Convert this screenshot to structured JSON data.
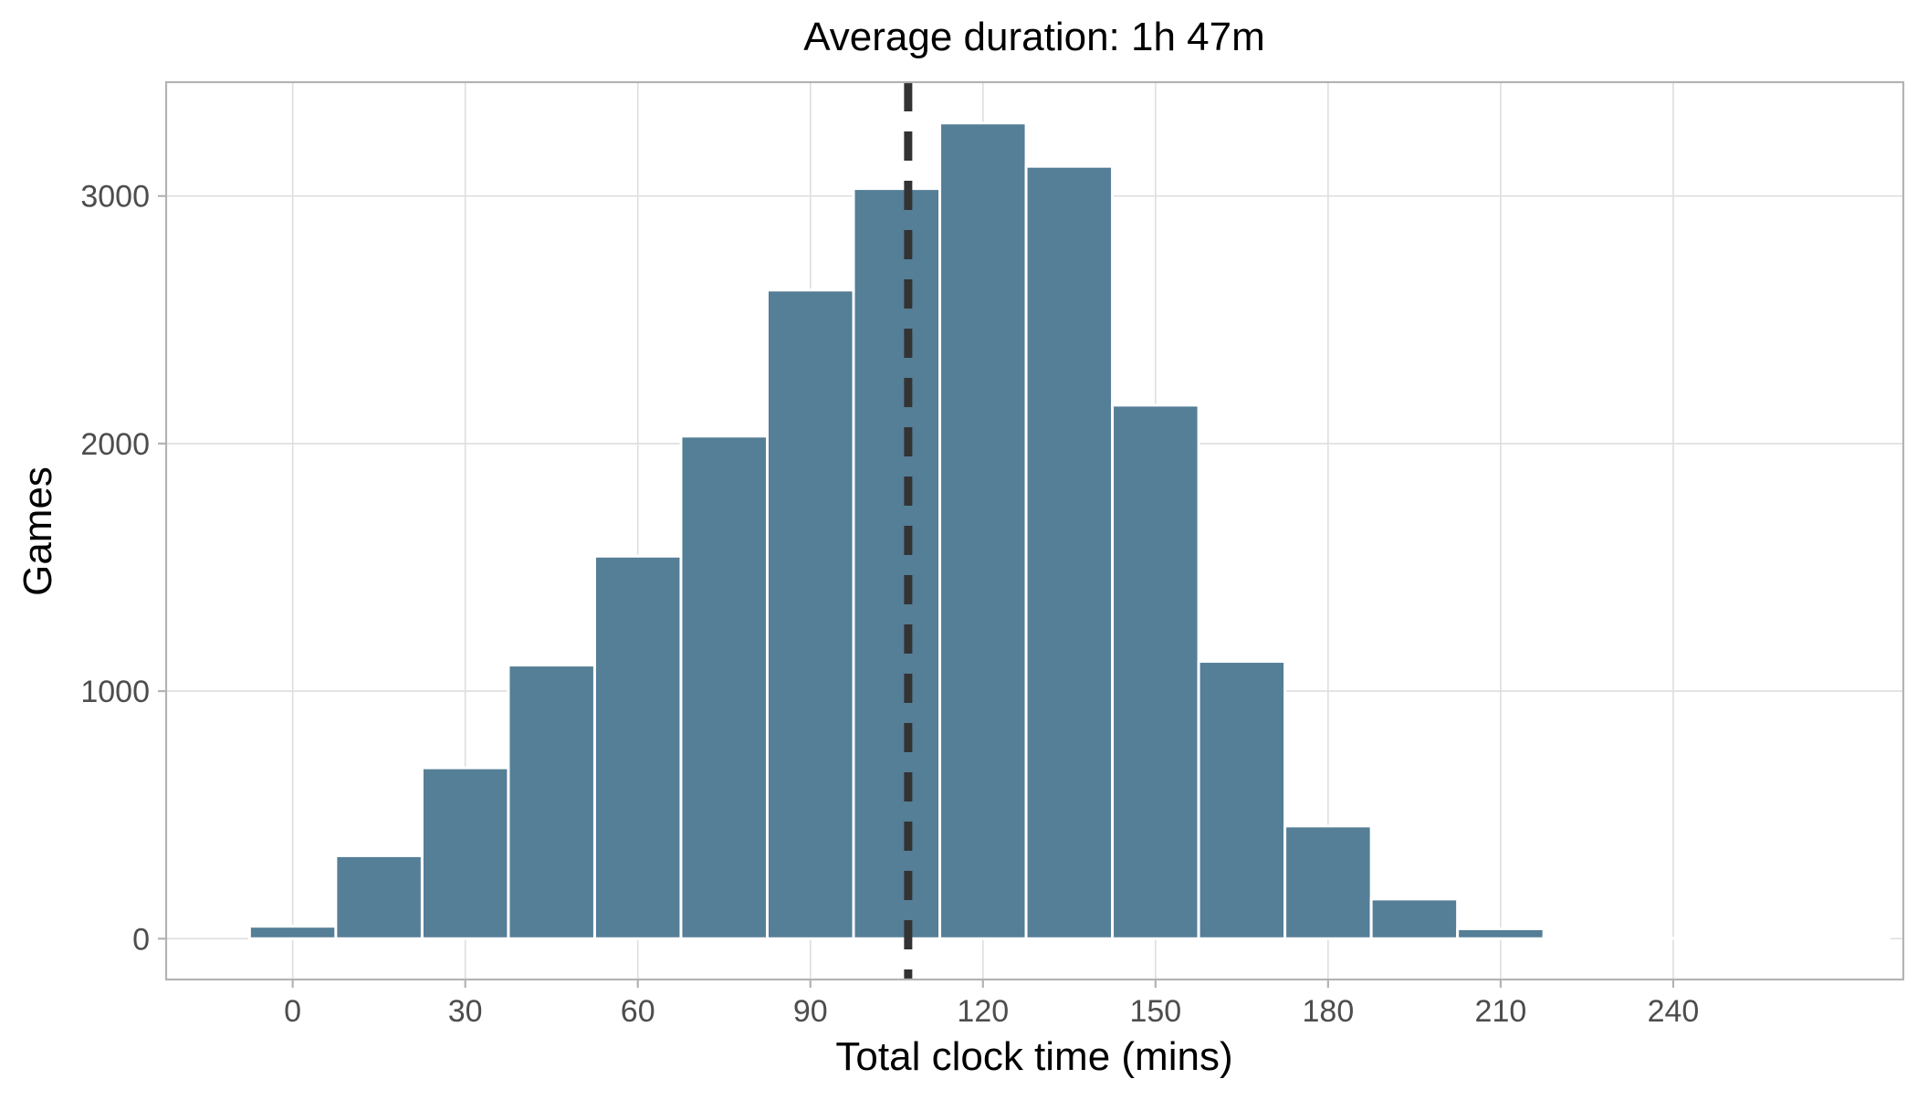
{
  "chart_data": {
    "type": "bar",
    "title": "Average duration:  1h 47m",
    "xlabel": "Total clock time (mins)",
    "ylabel": "Games",
    "x_ticks": [
      0,
      30,
      60,
      90,
      120,
      150,
      180,
      210,
      240
    ],
    "y_ticks": [
      0,
      1000,
      2000,
      3000
    ],
    "xlim": [
      -22,
      280
    ],
    "ylim": [
      -165,
      3460
    ],
    "bin_width": 15,
    "bins": [
      {
        "center": 0,
        "count": 50
      },
      {
        "center": 15,
        "count": 335
      },
      {
        "center": 30,
        "count": 690
      },
      {
        "center": 45,
        "count": 1105
      },
      {
        "center": 60,
        "count": 1545
      },
      {
        "center": 75,
        "count": 2030
      },
      {
        "center": 90,
        "count": 2620
      },
      {
        "center": 105,
        "count": 3030
      },
      {
        "center": 120,
        "count": 3295
      },
      {
        "center": 135,
        "count": 3120
      },
      {
        "center": 150,
        "count": 2155
      },
      {
        "center": 165,
        "count": 1120
      },
      {
        "center": 180,
        "count": 455
      },
      {
        "center": 195,
        "count": 160
      },
      {
        "center": 210,
        "count": 40
      },
      {
        "center": 225,
        "count": 8
      },
      {
        "center": 240,
        "count": 2
      },
      {
        "center": 255,
        "count": 1
      },
      {
        "center": 270,
        "count": 1
      }
    ],
    "mean_line": {
      "x": 107,
      "style": "dashed"
    },
    "grid": true,
    "legend": "none",
    "colors": {
      "bar_fill": "#557e97",
      "bar_outline": "#ffffff",
      "mean_line": "#333333"
    }
  }
}
